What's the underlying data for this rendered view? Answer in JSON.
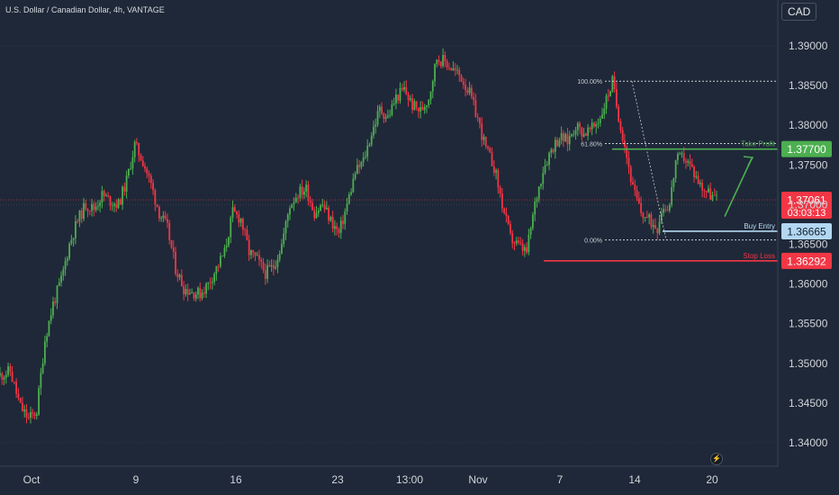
{
  "header": {
    "title": "U.S. Dollar / Canadian Dollar, 4h, VANTAGE",
    "currency": "CAD"
  },
  "chart_data": {
    "type": "candlestick",
    "title": "U.S. Dollar / Canadian Dollar, 4h, VANTAGE",
    "ylim": [
      1.3365,
      1.3928
    ],
    "y_ticks": [
      "1.39000",
      "1.38500",
      "1.38000",
      "1.37500",
      "1.37000",
      "1.36500",
      "1.36000",
      "1.35500",
      "1.35000",
      "1.34500",
      "1.34000"
    ],
    "x_ticks": [
      "Oct",
      "9",
      "16",
      "23",
      "13:00",
      "Nov",
      "7",
      "14",
      "20"
    ],
    "price_path": [
      [
        0,
        1.3485
      ],
      [
        5,
        1.349
      ],
      [
        10,
        1.3445
      ],
      [
        14,
        1.343
      ],
      [
        18,
        1.344
      ],
      [
        22,
        1.353
      ],
      [
        26,
        1.3575
      ],
      [
        30,
        1.3605
      ],
      [
        34,
        1.365
      ],
      [
        38,
        1.368
      ],
      [
        42,
        1.37
      ],
      [
        46,
        1.3695
      ],
      [
        50,
        1.3712
      ],
      [
        54,
        1.3705
      ],
      [
        58,
        1.37
      ],
      [
        62,
        1.373
      ],
      [
        66,
        1.3775
      ],
      [
        70,
        1.3755
      ],
      [
        74,
        1.3725
      ],
      [
        78,
        1.369
      ],
      [
        82,
        1.367
      ],
      [
        86,
        1.362
      ],
      [
        90,
        1.3595
      ],
      [
        94,
        1.359
      ],
      [
        98,
        1.3588
      ],
      [
        102,
        1.36
      ],
      [
        106,
        1.362
      ],
      [
        110,
        1.364
      ],
      [
        114,
        1.369
      ],
      [
        118,
        1.3682
      ],
      [
        122,
        1.364
      ],
      [
        126,
        1.363
      ],
      [
        130,
        1.3614
      ],
      [
        134,
        1.3622
      ],
      [
        138,
        1.365
      ],
      [
        142,
        1.37
      ],
      [
        146,
        1.3715
      ],
      [
        150,
        1.372
      ],
      [
        154,
        1.369
      ],
      [
        158,
        1.37
      ],
      [
        162,
        1.368
      ],
      [
        166,
        1.3663
      ],
      [
        170,
        1.37
      ],
      [
        174,
        1.374
      ],
      [
        178,
        1.3755
      ],
      [
        182,
        1.379
      ],
      [
        186,
        1.382
      ],
      [
        190,
        1.381
      ],
      [
        194,
        1.3835
      ],
      [
        198,
        1.3845
      ],
      [
        202,
        1.3825
      ],
      [
        206,
        1.3818
      ],
      [
        210,
        1.3835
      ],
      [
        214,
        1.3885
      ],
      [
        218,
        1.388
      ],
      [
        222,
        1.387
      ],
      [
        226,
        1.386
      ],
      [
        230,
        1.384
      ],
      [
        234,
        1.3808
      ],
      [
        238,
        1.377
      ],
      [
        242,
        1.3748
      ],
      [
        246,
        1.37
      ],
      [
        250,
        1.3658
      ],
      [
        254,
        1.3648
      ],
      [
        258,
        1.364
      ],
      [
        262,
        1.37
      ],
      [
        266,
        1.3745
      ],
      [
        270,
        1.377
      ],
      [
        274,
        1.3785
      ],
      [
        278,
        1.378
      ],
      [
        282,
        1.38
      ],
      [
        286,
        1.379
      ],
      [
        290,
        1.3795
      ],
      [
        294,
        1.381
      ],
      [
        298,
        1.384
      ],
      [
        300,
        1.3855
      ],
      [
        302,
        1.3825
      ],
      [
        306,
        1.3775
      ],
      [
        310,
        1.372
      ],
      [
        314,
        1.369
      ],
      [
        318,
        1.368
      ],
      [
        322,
        1.3672
      ],
      [
        324,
        1.3695
      ],
      [
        328,
        1.37
      ],
      [
        331,
        1.3755
      ],
      [
        335,
        1.376
      ],
      [
        339,
        1.3745
      ],
      [
        343,
        1.3725
      ],
      [
        347,
        1.3715
      ],
      [
        351,
        1.3706
      ]
    ],
    "fibonacci": [
      {
        "label": "100.00%",
        "price": 1.38555
      },
      {
        "label": "61.80%",
        "price": 1.3777
      },
      {
        "label": "0.00%",
        "price": 1.36555
      }
    ],
    "levels": [
      {
        "label": "Take Profit",
        "price": 1.377,
        "value": "1.37700",
        "color": "#4caf50"
      },
      {
        "label": "Buy Entry",
        "price": 1.36665,
        "value": "1.36665",
        "color": "#b3d7f2"
      },
      {
        "label": "Stop Loss",
        "price": 1.36292,
        "value": "1.36292",
        "color": "#f23645"
      }
    ],
    "last_price": {
      "value": "1.37061",
      "countdown": "03:03:13",
      "price": 1.37061
    }
  }
}
